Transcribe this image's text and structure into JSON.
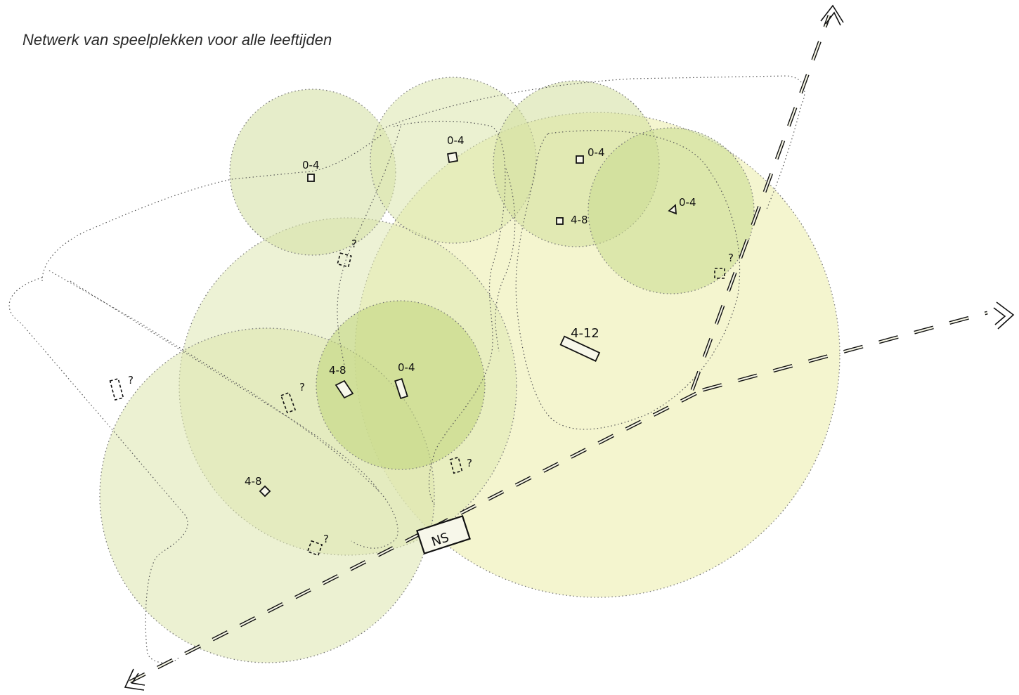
{
  "subtitle": "Netwerk van speelplekken voor alle leeftijden",
  "colors": {
    "circle_green": "#c9dc97",
    "circle_light": "#f0f3c4",
    "circle_dark": "#b9d47a",
    "stroke": "#111111"
  },
  "station_label": "NS",
  "age_labels": {
    "top_left": "0-4",
    "top_mid": "0-4",
    "top_right_a": "0-4",
    "top_right_b": "4-8",
    "far_right": "0-4",
    "center_a": "4-8",
    "center_b": "0-4",
    "large_center": "4-12",
    "lower_left": "4-8"
  },
  "unknown_marks": {
    "q1": "?",
    "q2": "?",
    "q3": "?",
    "q4": "?",
    "q5": "?",
    "q6": "?"
  },
  "icons": [
    "arrow-icon"
  ]
}
